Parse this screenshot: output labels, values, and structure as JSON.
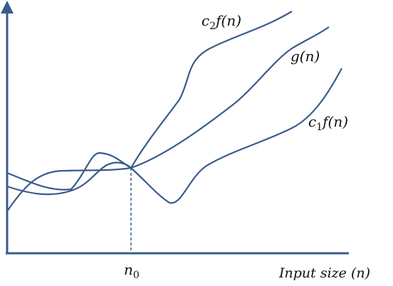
{
  "diagram": {
    "colors": {
      "axis": "#3a5c8c",
      "curve": "#3a5c8c",
      "text": "#111111"
    },
    "curves": [
      {
        "id": "c2f",
        "name_main": "c",
        "name_sub": "2",
        "name_rest": "f(n)"
      },
      {
        "id": "g",
        "name_main": "g(n)",
        "name_sub": "",
        "name_rest": ""
      },
      {
        "id": "c1f",
        "name_main": "c",
        "name_sub": "1",
        "name_rest": "f(n)"
      }
    ],
    "marker": {
      "main": "n",
      "sub": "0"
    },
    "x_axis_label": "Input size (n)"
  }
}
